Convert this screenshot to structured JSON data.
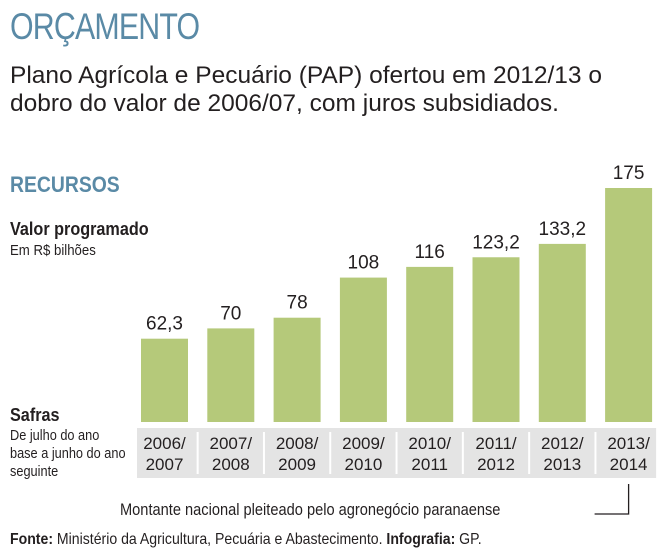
{
  "header": {
    "title": "ORÇAMENTO",
    "subtitle": "Plano Agrícola e Pecuário (PAP) ofertou em 2012/13 o dobro do valor de 2006/07, com juros subsidiados."
  },
  "section_title": "RECURSOS",
  "value_label": "Valor programado",
  "value_unit": "Em R$ bilhões",
  "safras_label": "Safras",
  "safras_note": "De julho do ano base a junho do ano seguinte",
  "annotation": "Montante nacional pleiteado pelo agronegócio paranaense",
  "footer": {
    "source_label": "Fonte:",
    "source_text": "Ministério da Agricultura, Pecuária e Abastecimento.",
    "infographic_label": "Infografia:",
    "infographic_text": "GP."
  },
  "colors": {
    "bar": "#b5c97a",
    "tick_band": "#e4e4e4",
    "accent": "#5a8aa6"
  },
  "chart_data": {
    "type": "bar",
    "title": "RECURSOS",
    "ylabel": "Valor programado (Em R$ bilhões)",
    "xlabel": "Safras",
    "categories": [
      [
        "2006/",
        "2007"
      ],
      [
        "2007/",
        "2008"
      ],
      [
        "2008/",
        "2009"
      ],
      [
        "2009/",
        "2010"
      ],
      [
        "2010/",
        "2011"
      ],
      [
        "2011/",
        "2012"
      ],
      [
        "2012/",
        "2013"
      ],
      [
        "2013/",
        "2014"
      ]
    ],
    "values": [
      62.3,
      70,
      78,
      108,
      116,
      123.2,
      133.2,
      175
    ],
    "value_labels": [
      "62,3",
      "70",
      "78",
      "108",
      "116",
      "123,2",
      "133,2",
      "175"
    ],
    "ylim": [
      0,
      175
    ],
    "highlight_index": 7
  }
}
